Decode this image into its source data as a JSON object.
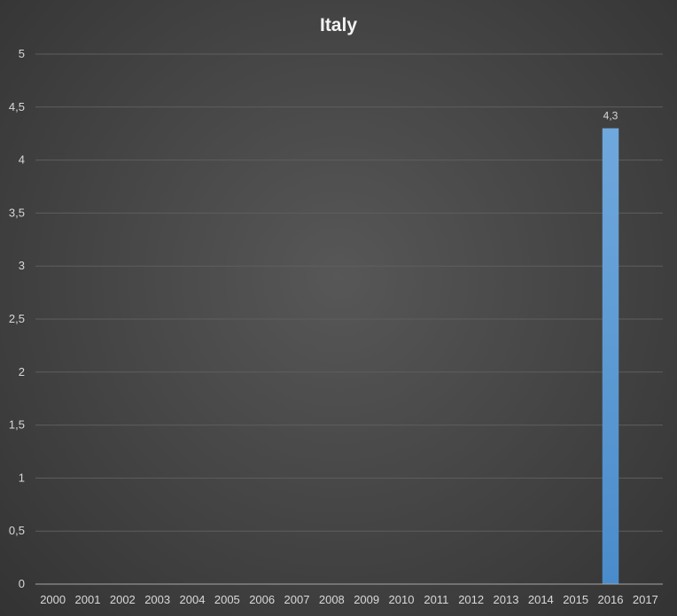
{
  "chart_data": {
    "type": "bar",
    "title": "Italy",
    "xlabel": "",
    "ylabel": "",
    "categories": [
      "2000",
      "2001",
      "2002",
      "2003",
      "2004",
      "2005",
      "2006",
      "2007",
      "2008",
      "2009",
      "2010",
      "2011",
      "2012",
      "2013",
      "2014",
      "2015",
      "2016",
      "2017"
    ],
    "values": [
      null,
      null,
      null,
      null,
      null,
      null,
      null,
      null,
      null,
      null,
      null,
      null,
      null,
      null,
      null,
      null,
      4.3,
      null
    ],
    "data_labels": [
      null,
      null,
      null,
      null,
      null,
      null,
      null,
      null,
      null,
      null,
      null,
      null,
      null,
      null,
      null,
      null,
      "4,3",
      null
    ],
    "ylim": [
      0,
      5
    ],
    "y_ticks": [
      0,
      0.5,
      1,
      1.5,
      2,
      2.5,
      3,
      3.5,
      4,
      4.5,
      5
    ],
    "y_tick_labels": [
      "0",
      "0,5",
      "1",
      "1,5",
      "2",
      "2,5",
      "3",
      "3,5",
      "4",
      "4,5",
      "5"
    ],
    "grid": true,
    "legend": "none",
    "colors": {
      "bar": "#5b9bd5",
      "grid": "#5e5e5e",
      "axis": "#a6a6a6",
      "text": "#d9d9d9",
      "title": "#f2f2f2"
    }
  }
}
